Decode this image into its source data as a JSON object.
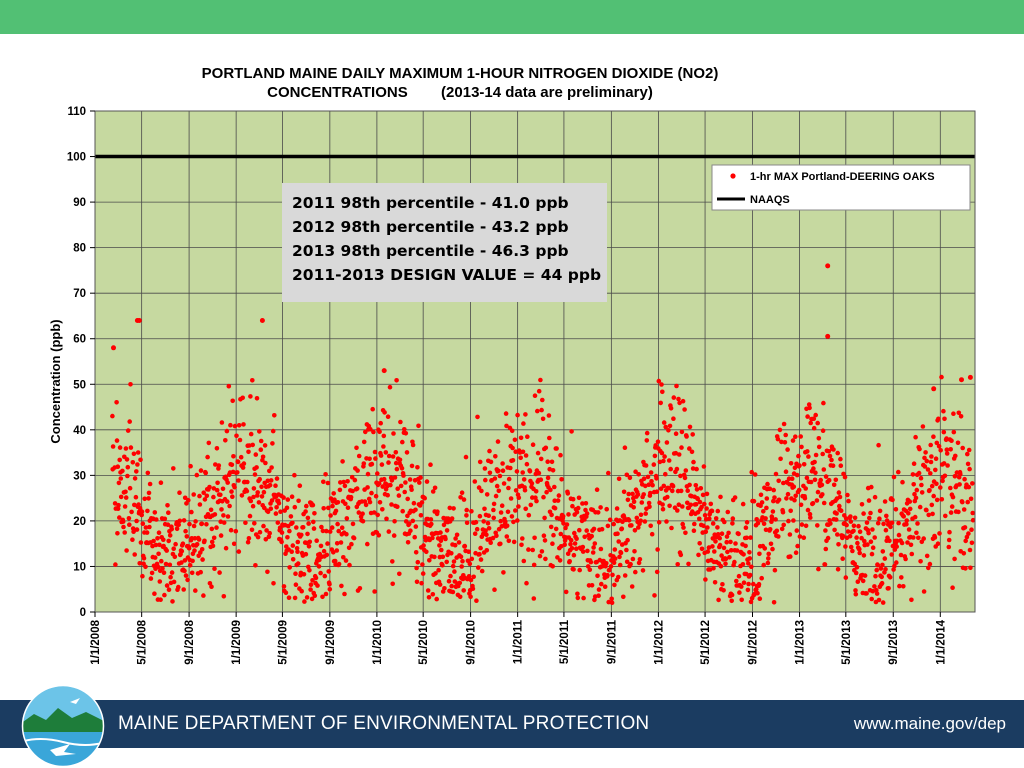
{
  "header": {
    "bar_color": "#52c074"
  },
  "chart_data": {
    "type": "scatter",
    "title": [
      "PORTLAND MAINE DAILY MAXIMUM 1-HOUR NITROGEN DIOXIDE (NO2)",
      "CONCENTRATIONS        (2013-14 data are preliminary)"
    ],
    "ylabel": "Concentration (ppb)",
    "xlabel": "",
    "ylim": [
      0,
      110
    ],
    "yticks": [
      0,
      10,
      20,
      30,
      40,
      50,
      60,
      70,
      80,
      90,
      100,
      110
    ],
    "xlim": [
      "1/1/2008",
      "4/1/2014"
    ],
    "xticks": [
      "1/1/2008",
      "5/1/2008",
      "9/1/2008",
      "1/1/2009",
      "5/1/2009",
      "9/1/2009",
      "1/1/2010",
      "5/1/2010",
      "9/1/2010",
      "1/1/2011",
      "5/1/2011",
      "9/1/2011",
      "1/1/2012",
      "5/1/2012",
      "9/1/2012",
      "1/1/2013",
      "5/1/2013",
      "9/1/2013",
      "1/1/2014"
    ],
    "grid": true,
    "plot_background": "#c6d9a0",
    "series": [
      {
        "name": "1-hr MAX Portland-DEERING OAKS",
        "kind": "points",
        "color": "#ff0000",
        "points_note": "daily max values, approx. one point per day from 3/2008 to 3/2014; generated by seasonal pattern with notable outliers",
        "outliers": [
          {
            "x": "4/20/2008",
            "y": 64
          },
          {
            "x": "4/25/2008",
            "y": 64
          },
          {
            "x": "3/10/2009",
            "y": 64
          },
          {
            "x": "2/18/2008",
            "y": 58
          },
          {
            "x": "3/15/2013",
            "y": 76
          },
          {
            "x": "3/15/2013",
            "y": 60.5
          },
          {
            "x": "1/20/2010",
            "y": 53
          },
          {
            "x": "3/20/2014",
            "y": 51.5
          },
          {
            "x": "2/25/2014",
            "y": 51
          },
          {
            "x": "12/15/2013",
            "y": 49
          }
        ]
      },
      {
        "name": "NAAQS",
        "kind": "line",
        "color": "#000000",
        "value": 100
      }
    ],
    "legend": {
      "position": "top-right",
      "entries": [
        "1-hr MAX Portland-DEERING OAKS",
        "NAAQS"
      ]
    },
    "annotation": {
      "lines": [
        "2011 98th percentile - 41.0 ppb",
        "2012 98th percentile - 43.2 ppb",
        "2013 98th percentile - 46.3 ppb",
        "2011-2013  DESIGN VALUE = 44 ppb"
      ],
      "background": "#d9d9d9"
    }
  },
  "footer": {
    "org": "MAINE DEPARTMENT OF ENVIRONMENTAL PROTECTION",
    "url": "www.maine.gov/dep",
    "color": "#1b3c61"
  }
}
